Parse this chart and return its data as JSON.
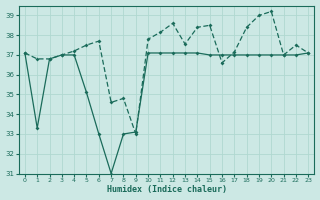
{
  "xlabel": "Humidex (Indice chaleur)",
  "background_color": "#cce8e4",
  "line_color": "#1a6b5a",
  "grid_color": "#b0d8d0",
  "x_values": [
    0,
    1,
    2,
    3,
    4,
    5,
    6,
    7,
    8,
    9,
    10,
    11,
    12,
    13,
    14,
    15,
    16,
    17,
    18,
    19,
    20,
    21,
    22,
    23
  ],
  "series1": [
    37.1,
    33.3,
    36.8,
    37.0,
    37.0,
    35.1,
    33.0,
    31.0,
    33.0,
    33.1,
    37.1,
    37.1,
    37.1,
    37.1,
    37.1,
    37.0,
    37.0,
    37.0,
    37.0,
    37.0,
    37.0,
    37.0,
    37.0,
    37.1
  ],
  "series2": [
    37.1,
    36.8,
    36.8,
    37.0,
    37.2,
    37.5,
    37.7,
    34.6,
    34.8,
    33.0,
    37.8,
    38.15,
    38.6,
    37.55,
    38.4,
    38.5,
    36.6,
    37.15,
    38.4,
    39.0,
    39.2,
    37.0,
    37.5,
    37.1
  ],
  "ylim": [
    31,
    39.5
  ],
  "xlim": [
    -0.5,
    23.5
  ],
  "yticks": [
    31,
    32,
    33,
    34,
    35,
    36,
    37,
    38,
    39
  ],
  "xticks": [
    0,
    1,
    2,
    3,
    4,
    5,
    6,
    7,
    8,
    9,
    10,
    11,
    12,
    13,
    14,
    15,
    16,
    17,
    18,
    19,
    20,
    21,
    22,
    23
  ]
}
